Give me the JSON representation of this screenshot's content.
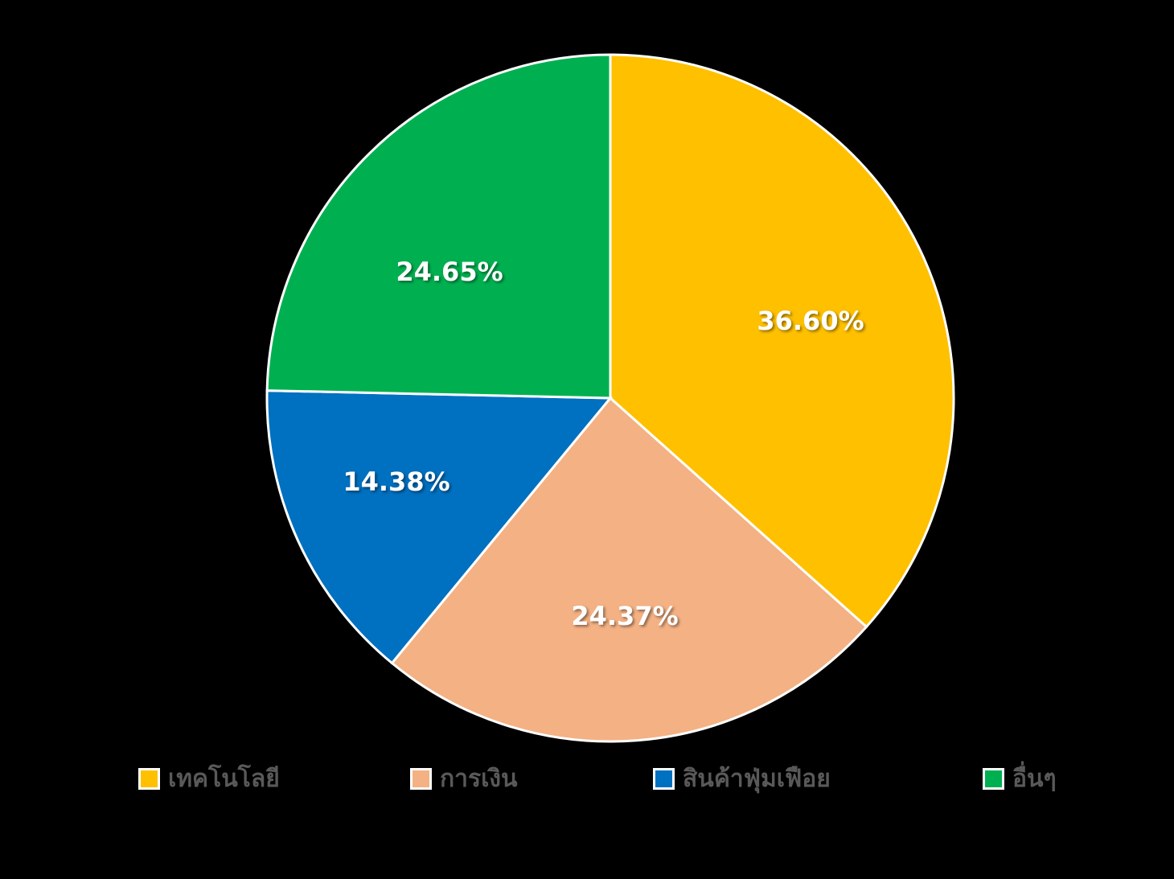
{
  "chart_data": {
    "type": "pie",
    "title": "",
    "categories": [
      "เทคโนโลยี",
      "การเงิน",
      "สินค้าฟุ่มเฟือย",
      "อื่นๆ"
    ],
    "values": [
      36.6,
      24.37,
      14.38,
      24.65
    ],
    "labels": [
      "36.60%",
      "24.37%",
      "14.38%",
      "24.65%"
    ],
    "colors": [
      "#FFC000",
      "#F4B183",
      "#0070C0",
      "#00B050"
    ],
    "start_angle": "12 o'clock",
    "direction": "clockwise",
    "legend_position": "bottom"
  },
  "legend": {
    "items": [
      {
        "label": "เทคโนโลยี",
        "color": "#FFC000"
      },
      {
        "label": "การเงิน",
        "color": "#F4B183"
      },
      {
        "label": "สินค้าฟุ่มเฟือย",
        "color": "#0070C0"
      },
      {
        "label": "อื่นๆ",
        "color": "#00B050"
      }
    ]
  }
}
